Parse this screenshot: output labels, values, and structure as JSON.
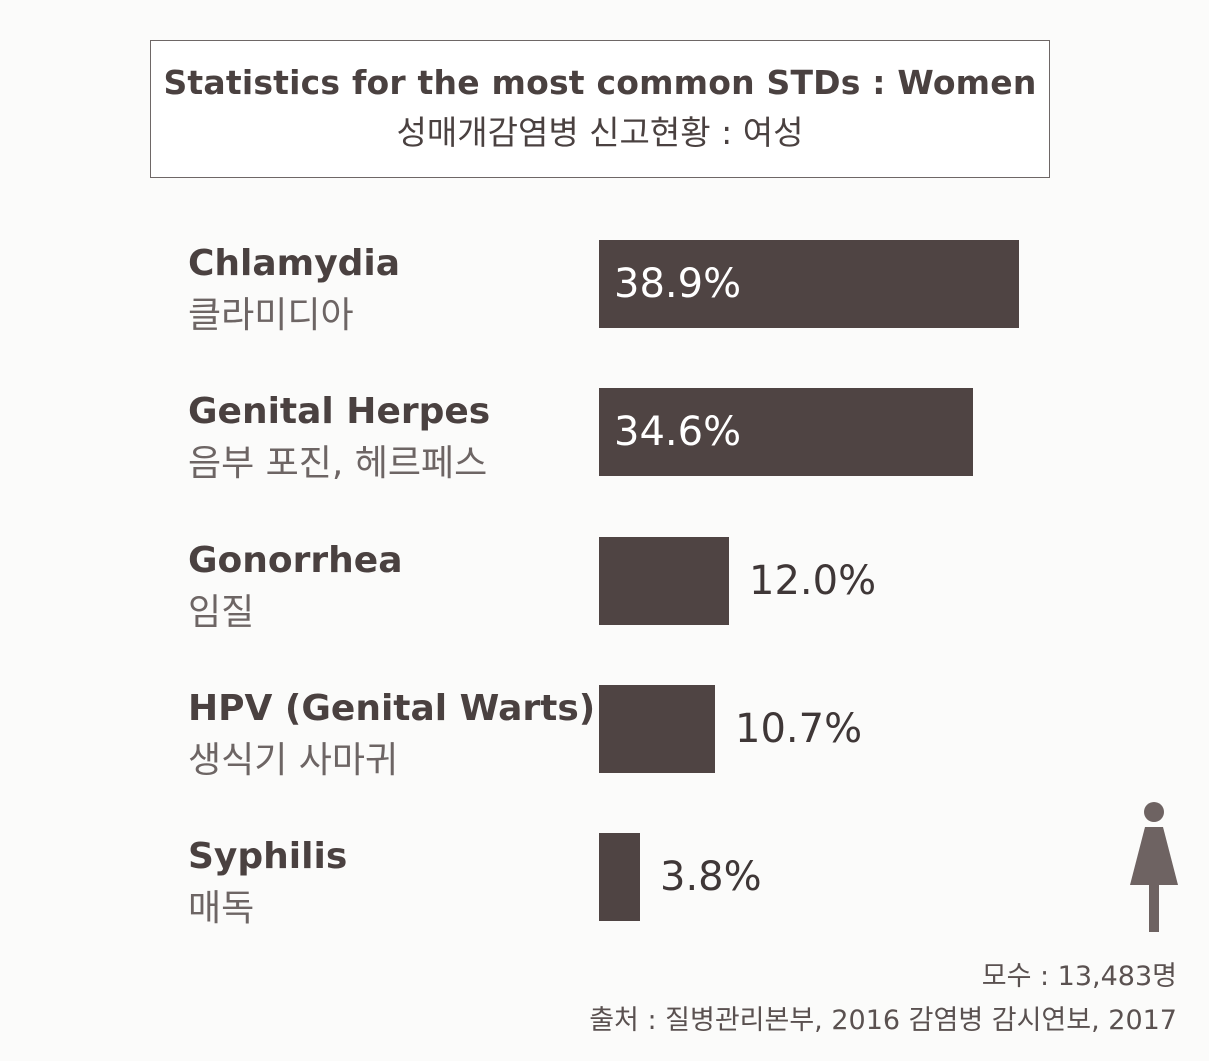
{
  "title": {
    "en": "Statistics for the most common STDs : Women",
    "ko": "성매개감염병 신고현황 : 여성"
  },
  "chart_data": {
    "type": "bar",
    "orientation": "horizontal",
    "categories": [
      {
        "en": "Chlamydia",
        "ko": "클라미디아"
      },
      {
        "en": "Genital Herpes",
        "ko": "음부 포진, 헤르페스"
      },
      {
        "en": "Gonorrhea",
        "ko": "임질"
      },
      {
        "en": "HPV (Genital Warts)",
        "ko": "생식기 사마귀"
      },
      {
        "en": "Syphilis",
        "ko": "매독"
      }
    ],
    "values": [
      38.9,
      34.6,
      12.0,
      10.7,
      3.8
    ],
    "value_labels": [
      "38.9%",
      "34.6%",
      "12.0%",
      "10.7%",
      "3.8%"
    ],
    "unit": "%",
    "grid": false,
    "bar_color": "#4f4443"
  },
  "footnote": {
    "sample": "모수 : 13,483명",
    "source": "출처 : 질병관리본부, 2016 감염병 감시연보, 2017"
  },
  "icons": {
    "woman": "woman-icon"
  }
}
